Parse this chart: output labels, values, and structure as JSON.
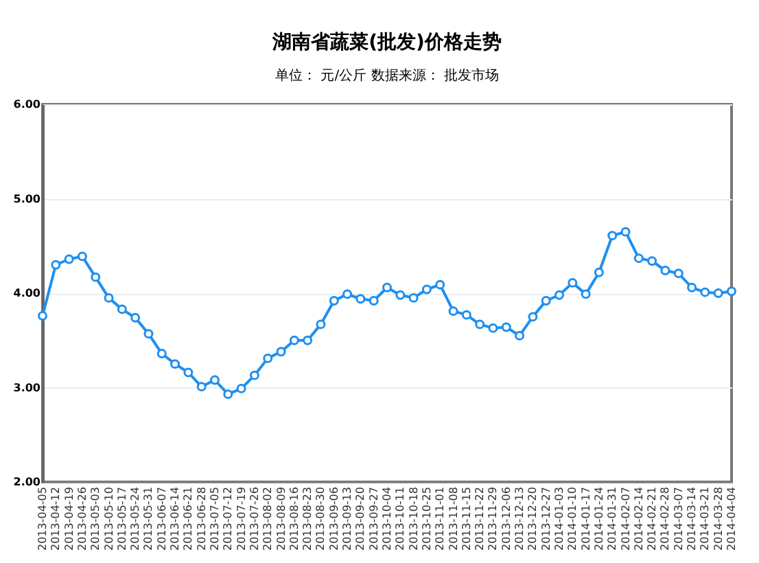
{
  "chart_data": {
    "type": "line",
    "title": "湖南省蔬菜(批发)价格走势",
    "subtitle": "单位： 元/公斤      数据来源： 批发市场",
    "categories": [
      "2013-04-05",
      "2013-04-12",
      "2013-04-19",
      "2013-04-26",
      "2013-05-03",
      "2013-05-10",
      "2013-05-17",
      "2013-05-24",
      "2013-05-31",
      "2013-06-07",
      "2013-06-14",
      "2013-06-21",
      "2013-06-28",
      "2013-07-05",
      "2013-07-12",
      "2013-07-19",
      "2013-07-26",
      "2013-08-02",
      "2013-08-09",
      "2013-08-16",
      "2013-08-23",
      "2013-08-30",
      "2013-09-06",
      "2013-09-13",
      "2013-09-20",
      "2013-09-27",
      "2013-10-04",
      "2013-10-11",
      "2013-10-18",
      "2013-10-25",
      "2013-11-01",
      "2013-11-08",
      "2013-11-15",
      "2013-11-22",
      "2013-11-29",
      "2013-12-06",
      "2013-12-13",
      "2013-12-20",
      "2013-12-27",
      "2014-01-03",
      "2014-01-10",
      "2014-01-17",
      "2014-01-24",
      "2014-01-31",
      "2014-02-07",
      "2014-02-14",
      "2014-02-21",
      "2014-02-28",
      "2014-03-07",
      "2014-03-14",
      "2014-03-21",
      "2014-03-28",
      "2014-04-04"
    ],
    "series": [
      {
        "color": "#1e8ff0",
        "values": [
          3.76,
          4.3,
          4.36,
          4.39,
          4.17,
          3.95,
          3.83,
          3.74,
          3.57,
          3.36,
          3.25,
          3.16,
          3.01,
          3.08,
          2.93,
          2.99,
          3.13,
          3.31,
          3.38,
          3.5,
          3.5,
          3.67,
          3.92,
          3.99,
          3.94,
          3.92,
          4.06,
          3.98,
          3.95,
          4.04,
          4.09,
          3.81,
          3.77,
          3.67,
          3.63,
          3.64,
          3.55,
          3.75,
          3.92,
          3.98,
          4.11,
          3.99,
          4.22,
          4.61,
          4.65,
          4.37,
          4.34,
          4.24,
          4.21,
          4.06,
          4.01,
          4.0,
          4.02
        ]
      }
    ],
    "ylim": [
      2,
      6
    ],
    "yticks": [
      {
        "value": 2,
        "label": "2.00"
      },
      {
        "value": 3,
        "label": "3.00"
      },
      {
        "value": 4,
        "label": "4.00"
      },
      {
        "value": 5,
        "label": "5.00"
      },
      {
        "value": 6,
        "label": "6.00"
      }
    ],
    "grid": "y",
    "marker": "circle",
    "line_style": "solid",
    "legend": false
  }
}
